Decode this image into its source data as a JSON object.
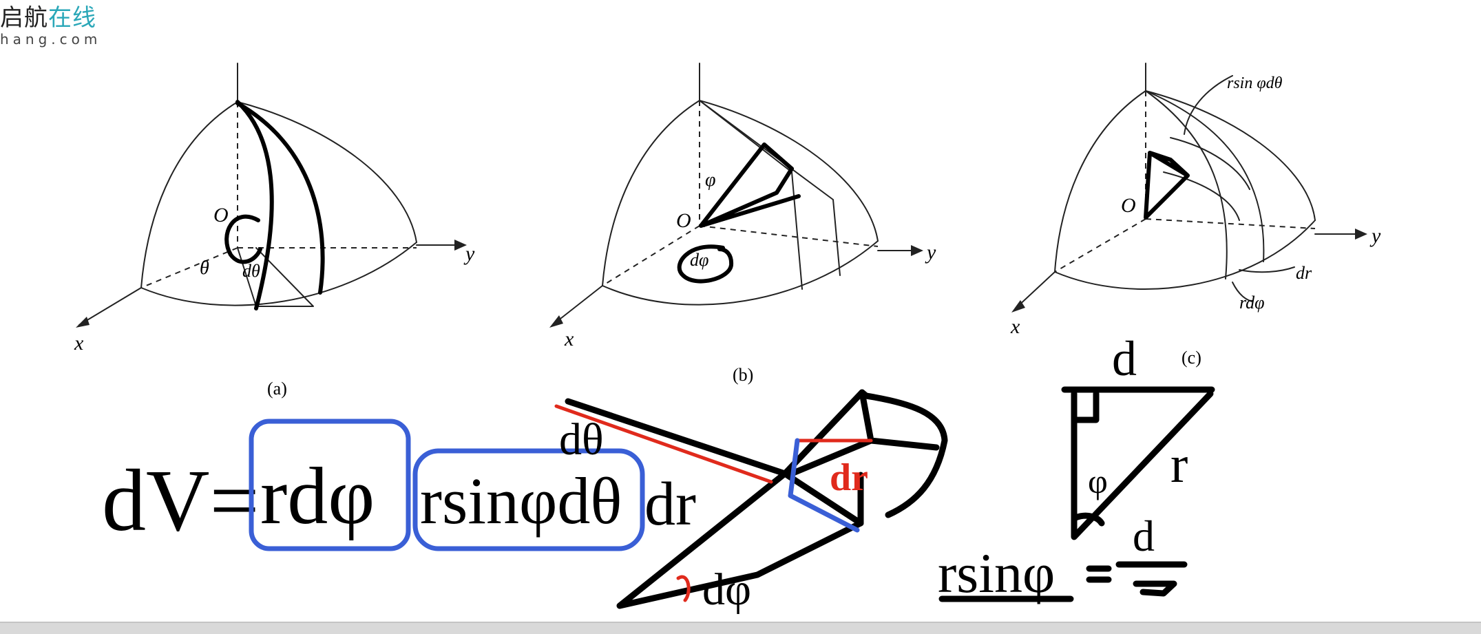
{
  "logo": {
    "brand_main": "启航",
    "brand_accent": "在线",
    "brand_sub": "hang.com"
  },
  "figure": {
    "panel_a": {
      "caption": "(a)",
      "axis_x": "x",
      "axis_y": "y",
      "origin": "O",
      "theta": "θ",
      "dtheta": "dθ"
    },
    "panel_b": {
      "caption": "(b)",
      "axis_x": "x",
      "axis_y": "y",
      "origin": "O",
      "phi": "φ",
      "dphi": "dφ"
    },
    "panel_c": {
      "caption": "(c)",
      "axis_x": "x",
      "axis_y": "y",
      "origin": "O",
      "label_rsin": "rsin φdθ",
      "label_dr": "dr",
      "label_rdphi": "rdφ"
    }
  },
  "handwriting": {
    "formula_lhs": "dV=",
    "formula_box1": "rdφ",
    "formula_box2": "rsinφdθ",
    "formula_tail": "dr",
    "wedge_dtheta": "dθ",
    "wedge_dr": "dr",
    "wedge_dphi": "dφ",
    "triangle_top": "d",
    "triangle_phi": "φ",
    "triangle_r": "r",
    "eq_lhs": "rsinφ",
    "eq_rhs_top": "d"
  },
  "colors": {
    "ink": "#000000",
    "highlight_blue": "#3a5fd6",
    "annotation_red": "#e02a1c",
    "brand_accent": "#2aa7b8"
  }
}
